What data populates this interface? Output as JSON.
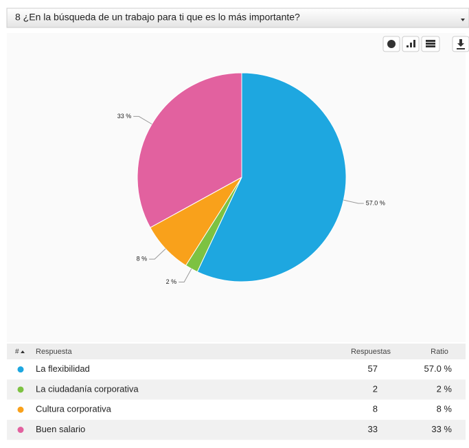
{
  "header": {
    "title": "8 ¿En la búsqueda de un trabajo para ti que es lo más importante?"
  },
  "chart_data": {
    "type": "pie",
    "categories": [
      "La flexibilidad",
      "La ciudadanía corporativa",
      "Cultura corporativa",
      "Buen salario"
    ],
    "values": [
      57,
      2,
      8,
      33
    ],
    "value_labels": [
      "57.0 %",
      "2 %",
      "8 %",
      "33 %"
    ],
    "colors": [
      "#1ea7e0",
      "#7dc242",
      "#f9a11b",
      "#e2619f"
    ]
  },
  "table": {
    "columns": [
      "#",
      "Respuesta",
      "Respuestas",
      "Ratio"
    ]
  }
}
